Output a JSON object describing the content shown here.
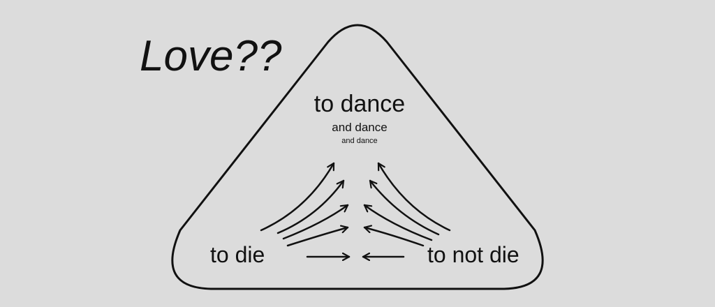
{
  "title": "Love??",
  "nodes": {
    "top": {
      "label": "to dance",
      "sub1": "and dance",
      "sub2": "and dance"
    },
    "left": {
      "label": "to die"
    },
    "right": {
      "label": "to not die"
    }
  },
  "colors": {
    "background": "#dcdcdc",
    "stroke": "#111111",
    "text": "#111111"
  }
}
